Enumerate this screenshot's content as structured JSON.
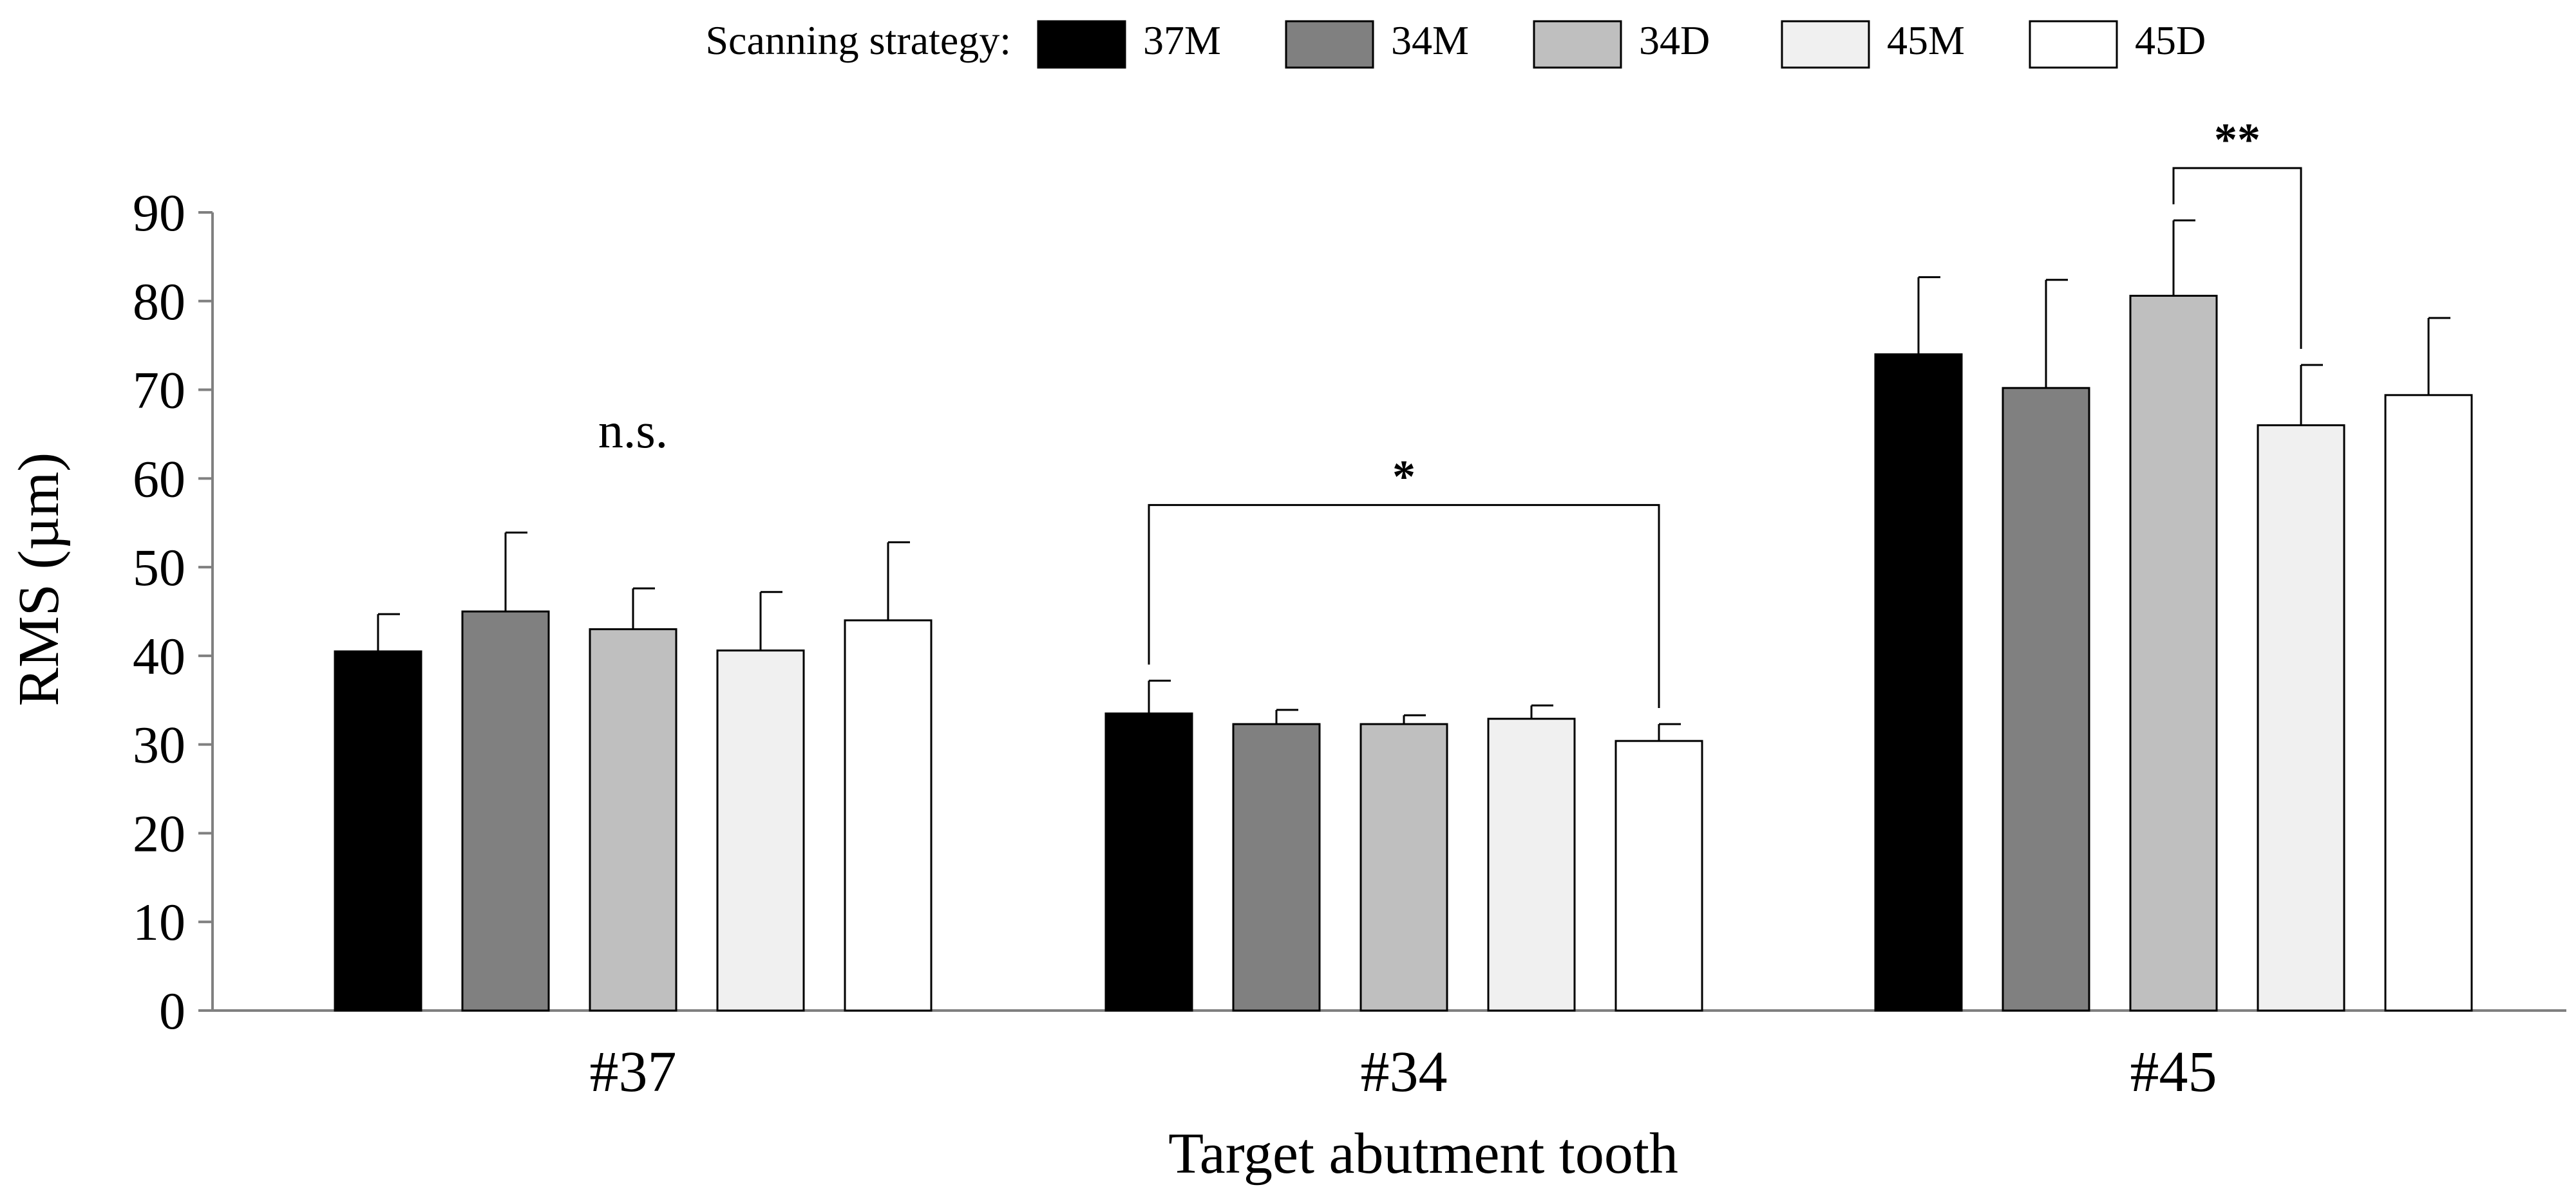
{
  "chart_data": {
    "type": "bar",
    "title": "",
    "xlabel": "Target abutment tooth",
    "ylabel": "RMS (µm)",
    "ylim": [
      0,
      90
    ],
    "yticks": [
      0,
      10,
      20,
      30,
      40,
      50,
      60,
      70,
      80,
      90
    ],
    "grid": false,
    "legend_title": "Scanning strategy:",
    "legend_position": "top",
    "categories": [
      "#37",
      "#34",
      "#45"
    ],
    "series": [
      {
        "name": "37M",
        "color": "#000000",
        "values": [
          40.5,
          33.5,
          74.0
        ],
        "errors": [
          4.2,
          3.7,
          8.7
        ]
      },
      {
        "name": "34M",
        "color": "#808080",
        "values": [
          45.0,
          32.3,
          70.2
        ],
        "errors": [
          8.9,
          1.6,
          12.2
        ]
      },
      {
        "name": "34D",
        "color": "#bfbfbf",
        "values": [
          43.0,
          32.3,
          80.6
        ],
        "errors": [
          4.6,
          1.0,
          8.5
        ]
      },
      {
        "name": "45M",
        "color": "#f0f0f0",
        "values": [
          40.6,
          32.9,
          66.0
        ],
        "errors": [
          6.6,
          1.5,
          6.8
        ]
      },
      {
        "name": "45D",
        "color": "#ffffff",
        "values": [
          44.0,
          30.4,
          69.4
        ],
        "errors": [
          8.8,
          1.9,
          8.7
        ]
      }
    ],
    "annotations": [
      {
        "category": 0,
        "text": "n.s."
      },
      {
        "category": 1,
        "text": "*",
        "from_series": 0,
        "to_series": 4,
        "y": 57
      },
      {
        "category": 2,
        "text": "**",
        "from_series": 2,
        "to_series": 3,
        "y": 95
      }
    ]
  }
}
